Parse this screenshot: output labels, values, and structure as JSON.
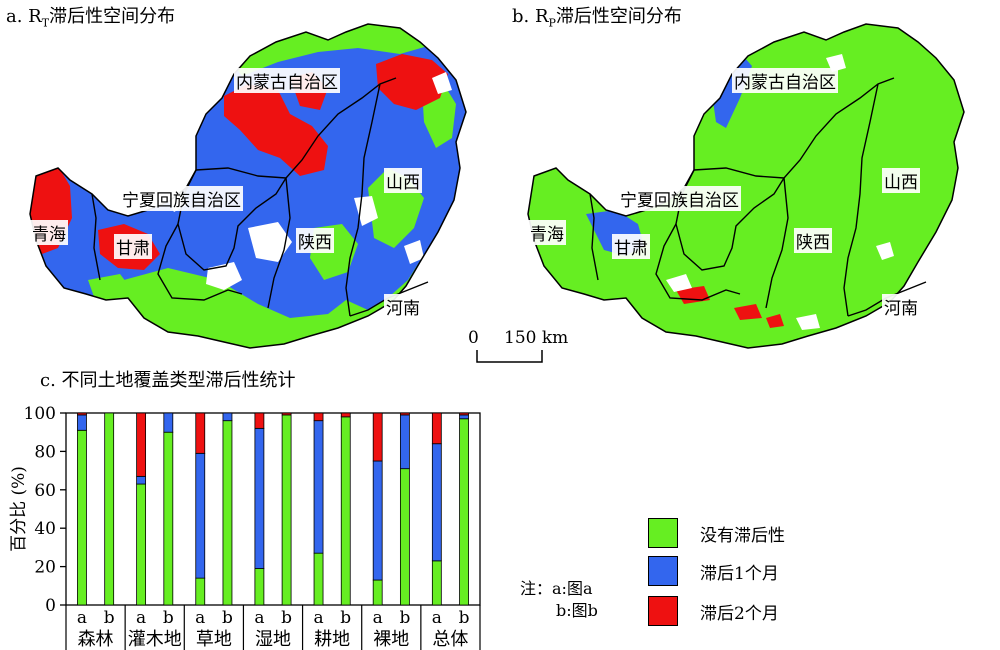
{
  "panels": {
    "a_title": "a. R",
    "a_sub": "T",
    "a_suffix": "滞后性空间分布",
    "b_title": "b. R",
    "b_sub": "P",
    "b_suffix": "滞后性空间分布",
    "c_title": "c. 不同土地覆盖类型滞后性统计"
  },
  "map_labels": {
    "inner_mongolia": "内蒙古自治区",
    "ningxia": "宁夏回族自治区",
    "qinghai": "青海",
    "gansu": "甘肃",
    "shaanxi": "陕西",
    "shanxi": "山西",
    "henan": "河南"
  },
  "scale": {
    "zero": "0",
    "value": "150 km"
  },
  "colors": {
    "none": "#66ee22",
    "lag1": "#3366ee",
    "lag2": "#ee1111",
    "blank": "#ffffff",
    "border": "#000000"
  },
  "legend": [
    {
      "label": "没有滞后性",
      "key": "none"
    },
    {
      "label": "滞后1个月",
      "key": "lag1"
    },
    {
      "label": "滞后2个月",
      "key": "lag2"
    }
  ],
  "note": {
    "prefix": "注：",
    "line1": "a:图a",
    "line2": "b:图b"
  },
  "chart_data": {
    "type": "bar",
    "stacked": true,
    "title": "c. 不同土地覆盖类型滞后性统计",
    "ylabel": "百分比 (%)",
    "ylim": [
      0,
      100
    ],
    "yticks": [
      0,
      20,
      40,
      60,
      80,
      100
    ],
    "groups": [
      "森林",
      "灌木地",
      "草地",
      "湿地",
      "耕地",
      "裸地",
      "总体"
    ],
    "sub_labels": [
      "a",
      "b"
    ],
    "series": [
      {
        "name": "没有滞后性",
        "values": [
          91,
          100,
          63,
          90,
          14,
          96,
          19,
          99,
          27,
          98,
          13,
          71,
          23,
          97
        ]
      },
      {
        "name": "滞后1个月",
        "values": [
          8,
          0,
          4,
          10,
          65,
          4,
          73,
          0,
          69,
          0,
          62,
          28,
          61,
          2
        ]
      },
      {
        "name": "滞后2个月",
        "values": [
          1,
          0,
          33,
          0,
          21,
          0,
          8,
          1,
          4,
          2,
          25,
          1,
          16,
          1
        ]
      }
    ]
  }
}
